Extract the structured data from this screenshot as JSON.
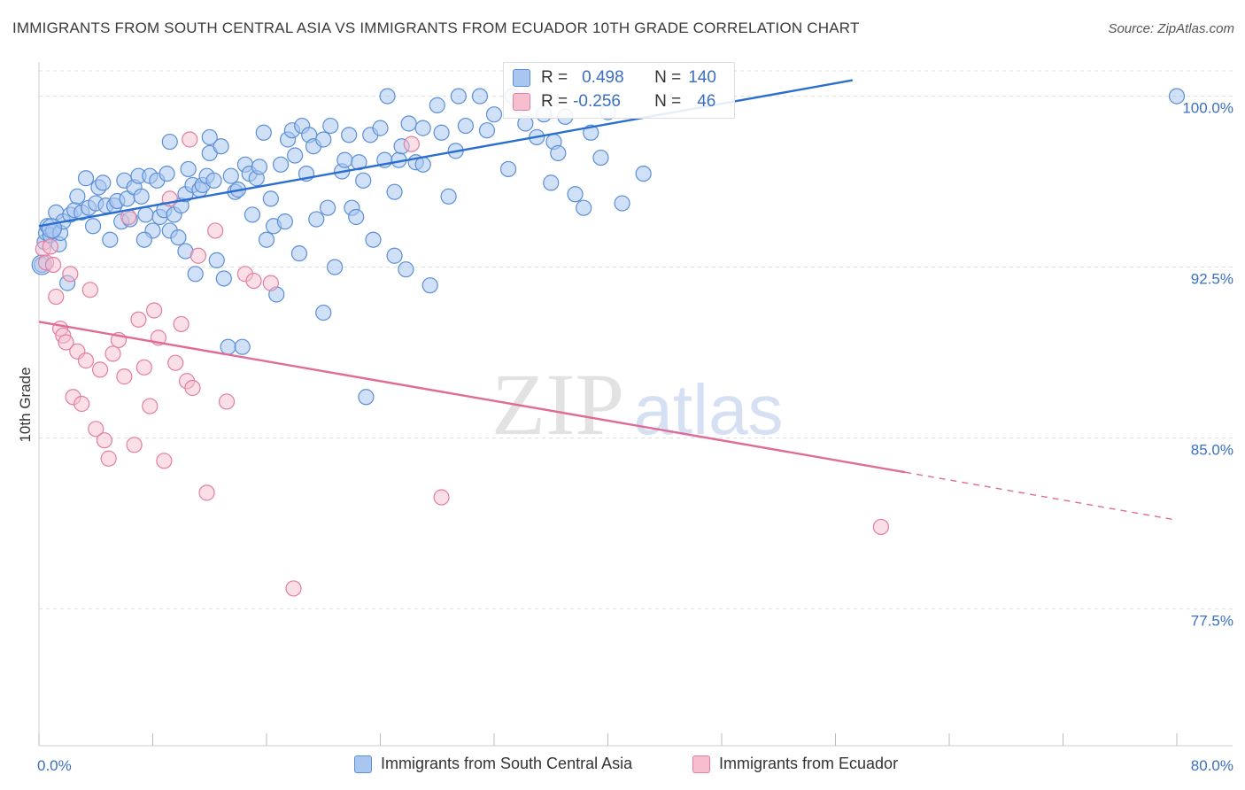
{
  "title": "IMMIGRANTS FROM SOUTH CENTRAL ASIA VS IMMIGRANTS FROM ECUADOR 10TH GRADE CORRELATION CHART",
  "source": "Source: ZipAtlas.com",
  "watermark": {
    "zip": "ZIP",
    "atlas": "atlas"
  },
  "colors": {
    "blue_fill": "#a9c6f0",
    "blue_stroke": "#5b8fd6",
    "blue_line": "#2a6fd0",
    "pink_fill": "#f6bfd0",
    "pink_stroke": "#e27ea0",
    "pink_line": "#e06b96",
    "axis_text": "#3a6fc4",
    "grid": "#dddddd"
  },
  "stats": {
    "r_label": "R =",
    "n_label": "N =",
    "blue_r": "0.498",
    "blue_n": "140",
    "pink_r": "-0.256",
    "pink_n": "46"
  },
  "chart_data": {
    "type": "scatter",
    "title": "IMMIGRANTS FROM SOUTH CENTRAL ASIA VS IMMIGRANTS FROM ECUADOR 10TH GRADE CORRELATION CHART",
    "xlabel": "",
    "ylabel": "10th Grade",
    "xlim": [
      0,
      80
    ],
    "ylim": [
      71.5,
      101.5
    ],
    "x_tick_labels": [
      "0.0%",
      "80.0%"
    ],
    "y_ticks": [
      77.5,
      85.0,
      92.5,
      100.0
    ],
    "y_tick_labels": [
      "77.5%",
      "85.0%",
      "92.5%",
      "100.0%"
    ],
    "grid": true,
    "legend_position": "bottom",
    "series": [
      {
        "name": "Immigrants from South Central Asia",
        "color": "#a9c6f0",
        "trend": {
          "x": [
            0,
            57.2
          ],
          "y": [
            94.3,
            100.7
          ]
        },
        "points": [
          [
            0.2,
            92.6
          ],
          [
            0.4,
            93.6
          ],
          [
            0.5,
            94.0
          ],
          [
            0.6,
            94.3
          ],
          [
            0.8,
            93.9
          ],
          [
            1.0,
            94.1
          ],
          [
            1.2,
            94.9
          ],
          [
            1.4,
            93.5
          ],
          [
            1.5,
            94.0
          ],
          [
            1.7,
            94.5
          ],
          [
            2.0,
            91.8
          ],
          [
            2.2,
            94.8
          ],
          [
            2.5,
            95.0
          ],
          [
            2.7,
            95.6
          ],
          [
            3.0,
            94.9
          ],
          [
            3.3,
            96.4
          ],
          [
            3.5,
            95.1
          ],
          [
            3.8,
            94.3
          ],
          [
            4.0,
            95.3
          ],
          [
            4.2,
            96.0
          ],
          [
            4.5,
            96.2
          ],
          [
            4.7,
            95.2
          ],
          [
            5.0,
            93.7
          ],
          [
            5.3,
            95.2
          ],
          [
            5.5,
            95.4
          ],
          [
            5.8,
            94.5
          ],
          [
            6.0,
            96.3
          ],
          [
            6.2,
            95.5
          ],
          [
            6.4,
            94.6
          ],
          [
            6.7,
            96.0
          ],
          [
            7.0,
            96.5
          ],
          [
            7.2,
            95.6
          ],
          [
            7.5,
            94.8
          ],
          [
            7.8,
            96.5
          ],
          [
            8.0,
            94.1
          ],
          [
            8.3,
            96.3
          ],
          [
            8.5,
            94.7
          ],
          [
            8.8,
            95.0
          ],
          [
            9.0,
            96.6
          ],
          [
            9.2,
            94.1
          ],
          [
            9.5,
            94.8
          ],
          [
            9.8,
            93.8
          ],
          [
            10.0,
            95.2
          ],
          [
            10.3,
            95.7
          ],
          [
            10.5,
            96.8
          ],
          [
            10.8,
            96.1
          ],
          [
            11.0,
            92.2
          ],
          [
            11.3,
            95.9
          ],
          [
            11.5,
            96.1
          ],
          [
            11.8,
            96.5
          ],
          [
            12.0,
            97.5
          ],
          [
            12.3,
            96.3
          ],
          [
            12.5,
            92.8
          ],
          [
            12.8,
            97.8
          ],
          [
            13.0,
            92.0
          ],
          [
            13.3,
            89.0
          ],
          [
            13.5,
            96.5
          ],
          [
            13.8,
            95.8
          ],
          [
            14.0,
            95.9
          ],
          [
            14.3,
            89.0
          ],
          [
            14.5,
            97.0
          ],
          [
            14.8,
            96.6
          ],
          [
            15.0,
            94.8
          ],
          [
            15.3,
            96.4
          ],
          [
            15.5,
            96.9
          ],
          [
            15.8,
            98.4
          ],
          [
            16.0,
            93.7
          ],
          [
            16.3,
            95.5
          ],
          [
            16.5,
            94.3
          ],
          [
            17.0,
            97.0
          ],
          [
            17.3,
            94.5
          ],
          [
            17.5,
            98.1
          ],
          [
            17.8,
            98.5
          ],
          [
            18.0,
            97.4
          ],
          [
            18.3,
            93.1
          ],
          [
            18.5,
            98.7
          ],
          [
            18.8,
            96.6
          ],
          [
            19.0,
            98.3
          ],
          [
            19.3,
            97.8
          ],
          [
            19.5,
            94.6
          ],
          [
            20.0,
            98.1
          ],
          [
            20.3,
            95.1
          ],
          [
            20.5,
            98.7
          ],
          [
            20.8,
            92.5
          ],
          [
            21.3,
            96.7
          ],
          [
            21.5,
            97.2
          ],
          [
            21.8,
            98.3
          ],
          [
            22.0,
            95.1
          ],
          [
            22.3,
            94.7
          ],
          [
            22.5,
            97.1
          ],
          [
            22.8,
            96.3
          ],
          [
            23.3,
            98.3
          ],
          [
            23.5,
            93.7
          ],
          [
            24.0,
            98.6
          ],
          [
            24.3,
            97.2
          ],
          [
            24.5,
            100.0
          ],
          [
            25.0,
            95.8
          ],
          [
            25.3,
            97.2
          ],
          [
            25.5,
            97.8
          ],
          [
            26.0,
            98.8
          ],
          [
            26.5,
            97.1
          ],
          [
            27.0,
            98.6
          ],
          [
            27.5,
            91.7
          ],
          [
            28.0,
            99.6
          ],
          [
            28.3,
            98.4
          ],
          [
            28.8,
            95.6
          ],
          [
            29.3,
            97.6
          ],
          [
            29.5,
            100.0
          ],
          [
            30.0,
            98.7
          ],
          [
            31.0,
            100.0
          ],
          [
            31.5,
            98.5
          ],
          [
            32.0,
            99.2
          ],
          [
            33.3,
            100.0
          ],
          [
            33.8,
            99.6
          ],
          [
            34.2,
            98.8
          ],
          [
            35.0,
            98.2
          ],
          [
            35.5,
            99.2
          ],
          [
            36.2,
            98.0
          ],
          [
            36.5,
            97.5
          ],
          [
            37.0,
            99.1
          ],
          [
            37.7,
            95.7
          ],
          [
            38.3,
            95.1
          ],
          [
            38.8,
            98.4
          ],
          [
            39.5,
            97.3
          ],
          [
            40.0,
            99.3
          ],
          [
            41.0,
            95.3
          ],
          [
            42.5,
            96.6
          ],
          [
            12.0,
            98.2
          ],
          [
            16.7,
            91.3
          ],
          [
            23.0,
            86.8
          ],
          [
            25.0,
            93.0
          ],
          [
            27.0,
            97.0
          ],
          [
            33.0,
            96.8
          ],
          [
            36.0,
            96.2
          ],
          [
            80.0,
            100.0
          ],
          [
            9.2,
            98.0
          ],
          [
            10.3,
            93.2
          ],
          [
            20.0,
            90.5
          ],
          [
            7.4,
            93.7
          ],
          [
            25.8,
            92.4
          ]
        ]
      },
      {
        "name": "Immigrants from Ecuador",
        "color": "#f6bfd0",
        "trend": {
          "x": [
            0,
            60.9
          ],
          "y": [
            90.1,
            83.5
          ]
        },
        "trend_dashed": {
          "x": [
            60.9,
            80
          ],
          "y": [
            83.5,
            81.4
          ]
        },
        "points": [
          [
            0.3,
            93.3
          ],
          [
            0.5,
            92.7
          ],
          [
            0.8,
            93.4
          ],
          [
            1.0,
            92.6
          ],
          [
            1.2,
            91.2
          ],
          [
            1.5,
            89.8
          ],
          [
            1.7,
            89.5
          ],
          [
            1.9,
            89.2
          ],
          [
            2.2,
            92.2
          ],
          [
            2.4,
            86.8
          ],
          [
            2.7,
            88.8
          ],
          [
            3.0,
            86.5
          ],
          [
            3.3,
            88.4
          ],
          [
            3.6,
            91.5
          ],
          [
            4.0,
            85.4
          ],
          [
            4.3,
            88.0
          ],
          [
            4.6,
            84.9
          ],
          [
            4.9,
            84.1
          ],
          [
            5.2,
            88.7
          ],
          [
            5.6,
            89.3
          ],
          [
            6.0,
            87.7
          ],
          [
            6.3,
            94.7
          ],
          [
            6.7,
            84.7
          ],
          [
            7.0,
            90.2
          ],
          [
            7.4,
            88.1
          ],
          [
            7.8,
            86.4
          ],
          [
            8.1,
            90.6
          ],
          [
            8.4,
            89.4
          ],
          [
            8.8,
            84.0
          ],
          [
            9.2,
            95.5
          ],
          [
            9.6,
            88.3
          ],
          [
            10.0,
            90.0
          ],
          [
            10.4,
            87.5
          ],
          [
            10.8,
            87.2
          ],
          [
            11.2,
            93.0
          ],
          [
            11.8,
            82.6
          ],
          [
            12.4,
            94.1
          ],
          [
            13.2,
            86.6
          ],
          [
            14.5,
            92.2
          ],
          [
            15.1,
            91.9
          ],
          [
            16.3,
            91.8
          ],
          [
            17.9,
            78.4
          ],
          [
            26.2,
            97.9
          ],
          [
            28.3,
            82.4
          ],
          [
            59.2,
            81.1
          ],
          [
            10.6,
            98.1
          ]
        ]
      }
    ]
  },
  "legend": {
    "blue_label": "Immigrants from South Central Asia",
    "pink_label": "Immigrants from Ecuador"
  }
}
